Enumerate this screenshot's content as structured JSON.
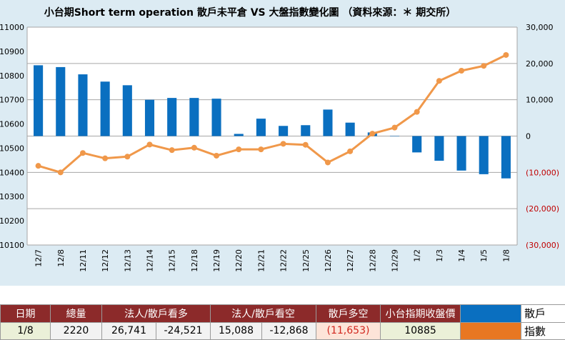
{
  "title": "小台期Short term operation 散戶未平倉 VS 大盤指數變化圖 （資料來源：＊ 期交所）",
  "chart_data": {
    "type": "bar+line",
    "categories": [
      "12/7",
      "12/8",
      "12/11",
      "12/12",
      "12/13",
      "12/14",
      "12/15",
      "12/18",
      "12/19",
      "12/20",
      "12/21",
      "12/22",
      "12/25",
      "12/26",
      "12/27",
      "12/28",
      "12/29",
      "1/2",
      "1/3",
      "1/4",
      "1/5",
      "1/8"
    ],
    "series": [
      {
        "name": "散戶",
        "type": "bar",
        "axis": "right",
        "values": [
          19500,
          19000,
          17000,
          15000,
          14000,
          10000,
          10500,
          10500,
          10300,
          600,
          4800,
          2800,
          3000,
          7300,
          3700,
          1000,
          0,
          -4500,
          -6800,
          -9500,
          -10500,
          -11653
        ]
      },
      {
        "name": "指數",
        "type": "line",
        "axis": "left",
        "values": [
          10427,
          10400,
          10480,
          10458,
          10465,
          10515,
          10492,
          10502,
          10469,
          10495,
          10495,
          10518,
          10514,
          10441,
          10487,
          10560,
          10585,
          10650,
          10778,
          10820,
          10840,
          10885
        ]
      }
    ],
    "left_axis": {
      "min": 10100,
      "max": 11000,
      "step": 100,
      "ticks": [
        "11000",
        "10900",
        "10800",
        "10700",
        "10600",
        "10500",
        "10400",
        "10300",
        "10200",
        "10100"
      ]
    },
    "right_axis": {
      "min": -30000,
      "max": 30000,
      "step": 10000,
      "ticks": [
        "30,000",
        "20,000",
        "10,000",
        "0",
        "(10,000)",
        "(20,000)",
        "(30,000)"
      ]
    },
    "colors": {
      "bar": "#0a6fc0",
      "line": "#f0984a",
      "neg_tick": "#c00000",
      "grid": "#a6a6a6"
    }
  },
  "table": {
    "headers": [
      "日期",
      "總量",
      "法人/散戶看多",
      "",
      "法人/散戶看空",
      "",
      "散戶多空",
      "小台指期收盤價"
    ],
    "row": [
      "1/8",
      "2220",
      "26,741",
      "-24,521",
      "15,088",
      "-12,868",
      "(11,653)",
      "10885"
    ],
    "legend": [
      "散戶",
      "指數"
    ]
  }
}
